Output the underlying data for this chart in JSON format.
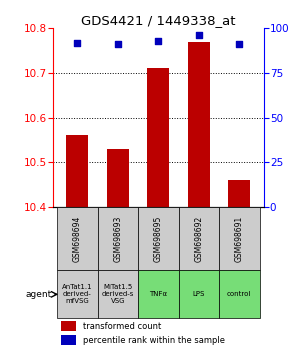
{
  "title": "GDS4421 / 1449338_at",
  "bar_values": [
    10.56,
    10.53,
    10.71,
    10.77,
    10.46
  ],
  "percentile_values": [
    92,
    91,
    93,
    96,
    91
  ],
  "ylim_left": [
    10.4,
    10.8
  ],
  "ylim_right": [
    0,
    100
  ],
  "yticks_left": [
    10.4,
    10.5,
    10.6,
    10.7,
    10.8
  ],
  "yticks_right": [
    0,
    25,
    50,
    75,
    100
  ],
  "bar_color": "#bb0000",
  "dot_color": "#0000bb",
  "gsm_labels": [
    "GSM698694",
    "GSM698693",
    "GSM698695",
    "GSM698692",
    "GSM698691"
  ],
  "agent_labels": [
    "AnTat1.1\nderived-\nmfVSG",
    "MiTat1.5\nderived-s\nVSG",
    "TNFα",
    "LPS",
    "control"
  ],
  "agent_bg_colors": [
    "#cccccc",
    "#cccccc",
    "#77dd77",
    "#77dd77",
    "#77dd77"
  ],
  "gsm_bg_color": "#cccccc",
  "legend_red_label": "transformed count",
  "legend_blue_label": "percentile rank within the sample",
  "bar_width": 0.55,
  "x_positions": [
    0,
    1,
    2,
    3,
    4
  ]
}
